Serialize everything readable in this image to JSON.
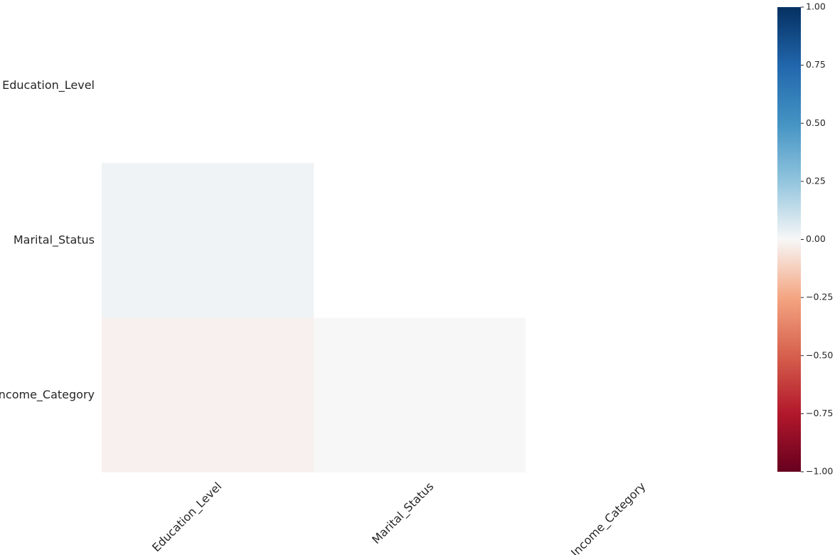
{
  "chart_data": {
    "type": "heatmap",
    "title": "",
    "xlabel": "",
    "ylabel": "",
    "rows": [
      "Education_Level",
      "Marital_Status",
      "Income_Category"
    ],
    "columns": [
      "Education_Level",
      "Marital_Status",
      "Income_Category"
    ],
    "masked": "upper triangle including diagonal",
    "cells": [
      {
        "row": "Marital_Status",
        "column": "Education_Level",
        "value": 0.02
      },
      {
        "row": "Income_Category",
        "column": "Education_Level",
        "value": -0.02
      },
      {
        "row": "Income_Category",
        "column": "Marital_Status",
        "value": 0.0
      }
    ],
    "colorbar": {
      "range": [
        -1.0,
        1.0
      ],
      "ticks": [
        "1.00",
        "0.75",
        "0.50",
        "0.25",
        "0.00",
        "−0.25",
        "−0.50",
        "−0.75",
        "−1.00"
      ],
      "tick_values": [
        1.0,
        0.75,
        0.5,
        0.25,
        0.0,
        -0.25,
        -0.5,
        -0.75,
        -1.0
      ],
      "colormap": "RdBu",
      "placement": "right"
    }
  }
}
